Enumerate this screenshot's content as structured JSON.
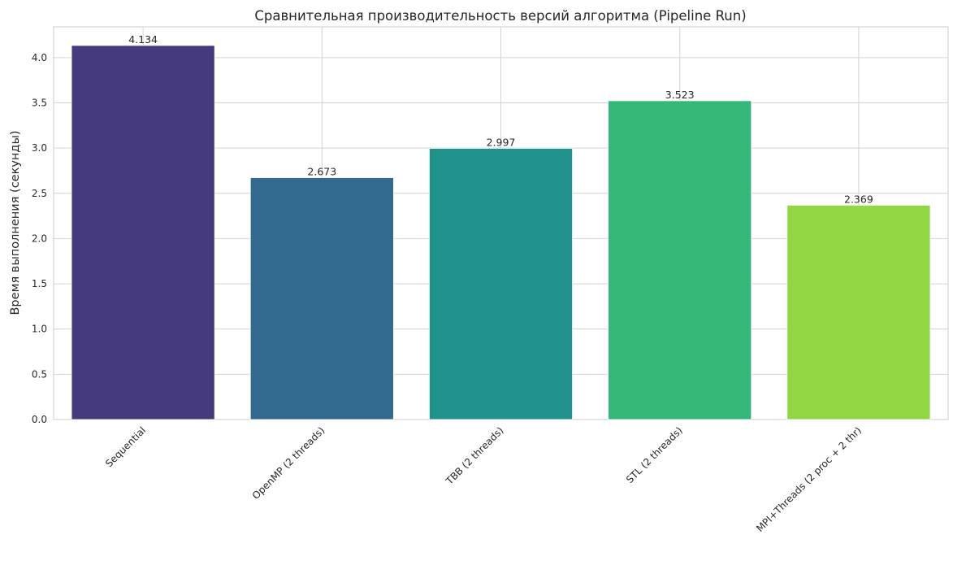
{
  "chart_data": {
    "type": "bar",
    "title": "Сравнительная производительность версий алгоритма (Pipeline Run)",
    "xlabel": "",
    "ylabel": "Время выполнения (секунды)",
    "categories": [
      "Sequential",
      "OpenMP (2 threads)",
      "TBB (2 threads)",
      "STL (2 threads)",
      "MPI+Threads (2 proc + 2 thr)"
    ],
    "values": [
      4.134,
      2.673,
      2.997,
      3.523,
      2.369
    ],
    "value_labels": [
      "4.134",
      "2.673",
      "2.997",
      "3.523",
      "2.369"
    ],
    "colors": [
      "#463a7f",
      "#32698f",
      "#21918c",
      "#35b779",
      "#91d743"
    ],
    "ylim": [
      0,
      4.34
    ],
    "yticks": [
      0.0,
      0.5,
      1.0,
      1.5,
      2.0,
      2.5,
      3.0,
      3.5,
      4.0
    ],
    "ytick_labels": [
      "0.0",
      "0.5",
      "1.0",
      "1.5",
      "2.0",
      "2.5",
      "3.0",
      "3.5",
      "4.0"
    ],
    "grid": true,
    "legend": false
  }
}
